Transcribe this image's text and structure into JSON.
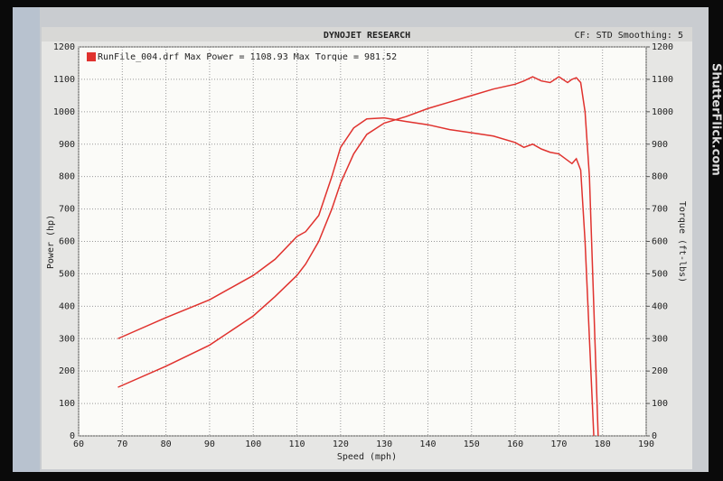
{
  "header": {
    "title": "DYNOJET RESEARCH",
    "settings": "CF: STD  Smoothing: 5"
  },
  "watermark": "ShutterFlick.com",
  "chart_data": {
    "type": "line",
    "legend_text": "RunFile_004.drf Max Power = 1108.93 Max Torque = 981.52",
    "xlabel": "Speed (mph)",
    "ylabel": "Power (hp)",
    "y2label": "Torque (ft-lbs)",
    "x": [
      69,
      80,
      90,
      100,
      105,
      110,
      112,
      115,
      118,
      120,
      123,
      126,
      130,
      135,
      140,
      145,
      150,
      155,
      160,
      162,
      164,
      166,
      168,
      170,
      172,
      173,
      174,
      175,
      176,
      177,
      178,
      179
    ],
    "series": [
      {
        "color": "#e0322e",
        "values": [
          150,
          215,
          280,
          370,
          430,
          495,
          530,
          600,
          700,
          780,
          870,
          930,
          965,
          985,
          1010,
          1030,
          1050,
          1070,
          1085,
          1095,
          1108,
          1095,
          1090,
          1108,
          1090,
          1100,
          1105,
          1090,
          1000,
          800,
          400,
          0
        ]
      },
      {
        "color": "#e0322e",
        "axis": "y2",
        "values": [
          300,
          365,
          420,
          495,
          545,
          615,
          630,
          680,
          800,
          890,
          950,
          978,
          981,
          970,
          960,
          945,
          935,
          925,
          905,
          890,
          900,
          885,
          875,
          870,
          850,
          840,
          855,
          820,
          600,
          300,
          0,
          null
        ]
      }
    ],
    "xlim": [
      60,
      190
    ],
    "xticks": [
      60,
      70,
      80,
      90,
      100,
      110,
      120,
      130,
      140,
      150,
      160,
      170,
      180,
      190
    ],
    "ylim": [
      0,
      1200
    ],
    "yticks": [
      0,
      100,
      200,
      300,
      400,
      500,
      600,
      700,
      800,
      900,
      1000,
      1100,
      1200
    ],
    "y2lim": [
      0,
      1200
    ],
    "y2ticks": [
      0,
      100,
      200,
      300,
      400,
      500,
      600,
      700,
      800,
      900,
      1000,
      1100,
      1200
    ],
    "grid": true
  }
}
